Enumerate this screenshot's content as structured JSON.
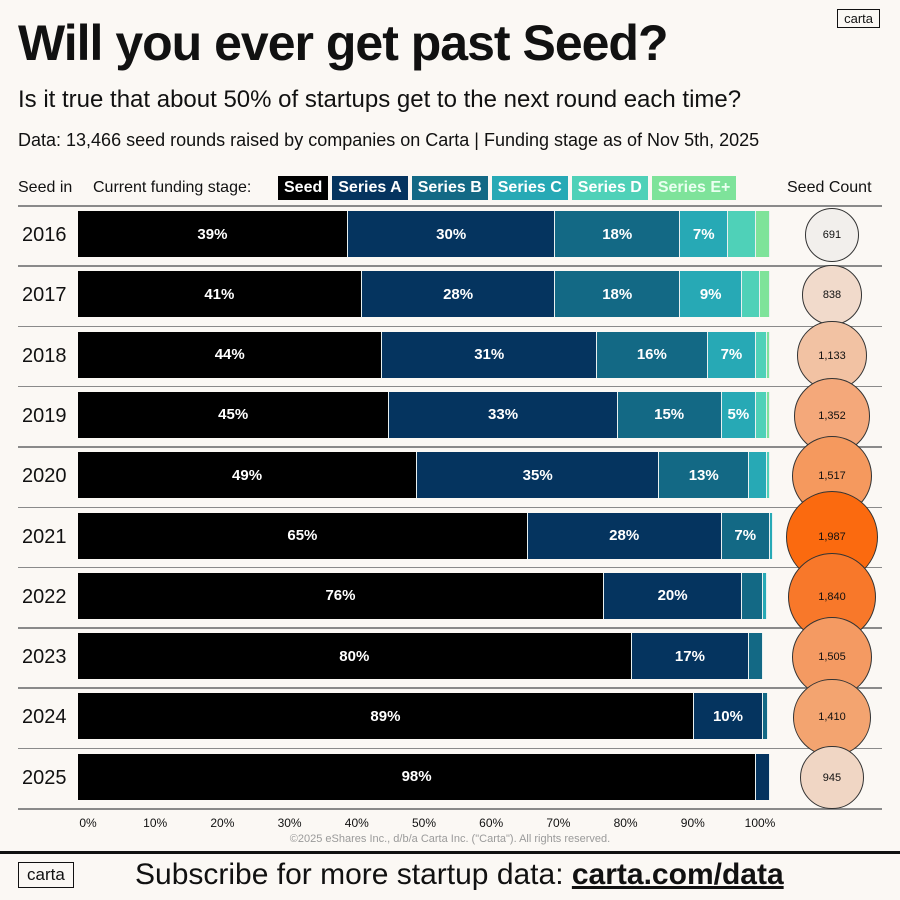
{
  "header": {
    "title": "Will you ever get past Seed?",
    "subtitle": "Is it true that about 50% of startups get to the next round each time?",
    "source": "Data: 13,466 seed rounds raised by companies on Carta | Funding stage as of Nov 5th, 2025",
    "logo": "carta"
  },
  "footer": {
    "copyright": "©2025 eShares Inc., d/b/a Carta Inc. (\"Carta\"). All rights reserved.",
    "cta": "Subscribe for more startup data: ",
    "cta_link": "carta.com/data",
    "logo": "carta"
  },
  "chart_data": {
    "type": "bar",
    "orientation": "horizontal-stacked-100",
    "row_header": "Seed in",
    "legend_title": "Current funding stage:",
    "count_header": "Seed Count",
    "legend_placement": "top",
    "categories": [
      "2016",
      "2017",
      "2018",
      "2019",
      "2020",
      "2021",
      "2022",
      "2023",
      "2024",
      "2025"
    ],
    "series": [
      {
        "name": "Seed",
        "color": "#000000",
        "values": [
          39,
          41,
          44,
          45,
          49,
          65,
          76,
          80,
          89,
          98
        ],
        "labels": [
          "39%",
          "41%",
          "44%",
          "45%",
          "49%",
          "65%",
          "76%",
          "80%",
          "89%",
          "98%"
        ]
      },
      {
        "name": "Series A",
        "color": "#05345f",
        "values": [
          30,
          28,
          31,
          33,
          35,
          28,
          20,
          17,
          10,
          2
        ],
        "labels": [
          "30%",
          "28%",
          "31%",
          "33%",
          "35%",
          "28%",
          "20%",
          "17%",
          "10%",
          ""
        ]
      },
      {
        "name": "Series B",
        "color": "#136985",
        "values": [
          18,
          18,
          16,
          15,
          13,
          7,
          3,
          2,
          0.7,
          0
        ],
        "labels": [
          "18%",
          "18%",
          "16%",
          "15%",
          "13%",
          "7%",
          "",
          "",
          "",
          ""
        ]
      },
      {
        "name": "Series C",
        "color": "#27a9b5",
        "values": [
          7,
          9,
          7,
          5,
          2.5,
          0.5,
          0.5,
          0,
          0,
          0
        ],
        "labels": [
          "7%",
          "9%",
          "7%",
          "5%",
          "",
          "",
          "",
          "",
          "",
          ""
        ]
      },
      {
        "name": "Series D",
        "color": "#4fd1b8",
        "values": [
          4,
          2.5,
          1.5,
          1.5,
          0.5,
          0,
          0,
          0,
          0,
          0
        ],
        "labels": [
          "",
          "",
          "",
          "",
          "",
          "",
          "",
          "",
          "",
          ""
        ]
      },
      {
        "name": "Series E+",
        "color": "#7ee39a",
        "values": [
          2,
          1.5,
          0.5,
          0.5,
          0,
          0,
          0,
          0,
          0,
          0
        ],
        "labels": [
          "",
          "",
          "",
          "",
          "",
          "",
          "",
          "",
          "",
          ""
        ]
      }
    ],
    "seed_counts": [
      691,
      838,
      1133,
      1352,
      1517,
      1987,
      1840,
      1505,
      1410,
      945
    ],
    "seed_count_labels": [
      "691",
      "838",
      "1,133",
      "1,352",
      "1,517",
      "1,987",
      "1,840",
      "1,505",
      "1,410",
      "945"
    ],
    "bubble_colors": [
      "#f2efec",
      "#f1dacb",
      "#f2c2a3",
      "#f4a87a",
      "#f5995e",
      "#fb6a0f",
      "#f8782a",
      "#f49a62",
      "#f3a470",
      "#f0d6c4"
    ],
    "xlim": [
      0,
      100
    ],
    "xticks": [
      "0%",
      "10%",
      "20%",
      "30%",
      "40%",
      "50%",
      "60%",
      "70%",
      "80%",
      "90%",
      "100%"
    ]
  }
}
